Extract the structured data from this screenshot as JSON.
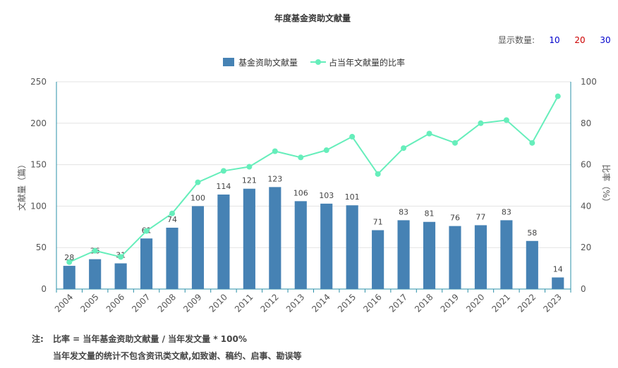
{
  "display_count": {
    "label": "显示数量:",
    "options": [
      {
        "label": "10",
        "color": "#0000cc"
      },
      {
        "label": "20",
        "color": "#cc0000"
      },
      {
        "label": "30",
        "color": "#0000cc"
      }
    ]
  },
  "notes": {
    "prefix": "注:",
    "line1": "比率 = 当年基金资助文献量 / 当年发文量 * 100%",
    "line2": "当年发文量的统计不包含资讯类文献,如致谢、稿约、启事、勘误等"
  },
  "chart_data": {
    "type": "bar+line",
    "title": "年度基金资助文献量",
    "categories": [
      "2004",
      "2005",
      "2006",
      "2007",
      "2008",
      "2009",
      "2010",
      "2011",
      "2012",
      "2013",
      "2014",
      "2015",
      "2016",
      "2017",
      "2018",
      "2019",
      "2020",
      "2021",
      "2022",
      "2023"
    ],
    "ylabel_left": "文献量（篇）",
    "ylabel_right": "比率（%）",
    "ylim_left": [
      0,
      250
    ],
    "ylim_right": [
      0,
      100
    ],
    "yticks_left": [
      0,
      50,
      100,
      150,
      200,
      250
    ],
    "yticks_right": [
      0,
      20,
      40,
      60,
      80,
      100
    ],
    "grid": true,
    "legend_position": "top-center",
    "series": [
      {
        "name": "基金资助文献量",
        "kind": "bar",
        "axis": "left",
        "color": "#4682b4",
        "values": [
          28,
          36,
          31,
          61,
          74,
          100,
          114,
          121,
          123,
          106,
          103,
          101,
          71,
          83,
          81,
          76,
          77,
          83,
          58,
          14
        ]
      },
      {
        "name": "占当年文献量的比率",
        "kind": "line",
        "axis": "right",
        "color": "#66eebb",
        "values": [
          13.0,
          18.5,
          15.5,
          28.0,
          36.5,
          51.5,
          57.0,
          59.0,
          66.5,
          63.5,
          67.0,
          73.5,
          55.5,
          68.0,
          75.0,
          70.5,
          80.0,
          81.5,
          70.5,
          93.0
        ]
      }
    ]
  }
}
